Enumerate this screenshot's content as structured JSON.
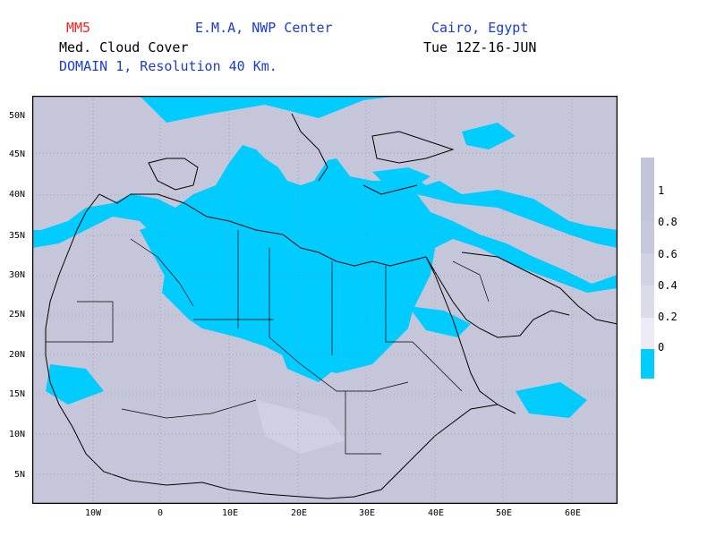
{
  "header": {
    "model": "MM5",
    "center": "E.M.A, NWP Center",
    "location": "Cairo, Egypt",
    "field": "Med. Cloud Cover",
    "time": "Tue 12Z-16-JUN",
    "domain": "DOMAIN 1, Resolution 40 Km."
  },
  "colors": {
    "model": "#ff2020",
    "blue_text": "#1a3cd6",
    "black_text": "#000000",
    "clear_sky": "#00ccff",
    "cloud_1": "#c4c4d8",
    "cloud_08": "#c8c8dc",
    "cloud_06": "#d2d2e4",
    "cloud_04": "#dcdce8",
    "cloud_02": "#ecebf6"
  },
  "map": {
    "lat_labels": [
      "50N",
      "45N",
      "40N",
      "35N",
      "30N",
      "25N",
      "20N",
      "15N",
      "10N",
      "5N"
    ],
    "lon_labels": [
      "10W",
      "0",
      "10E",
      "20E",
      "30E",
      "40E",
      "50E",
      "60E"
    ]
  },
  "colorbar": {
    "labels": [
      "1",
      "0.8",
      "0.6",
      "0.4",
      "0.2",
      "0"
    ],
    "segments": [
      "#c4c4d8",
      "#c8c8dc",
      "#d2d2e4",
      "#dcdce8",
      "#ecebf6",
      "#00ccff"
    ]
  }
}
